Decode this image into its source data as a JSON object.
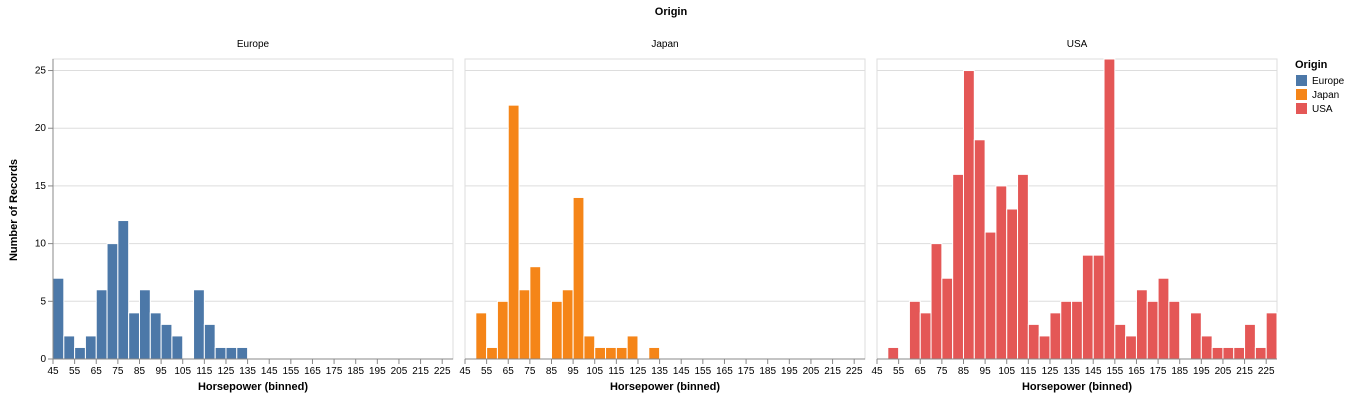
{
  "title": "Origin",
  "legend": {
    "title": "Origin",
    "position": "right",
    "items": [
      {
        "label": "Europe",
        "color": "#4c78a8"
      },
      {
        "label": "Japan",
        "color": "#f58518"
      },
      {
        "label": "USA",
        "color": "#e45756"
      }
    ]
  },
  "chart_data": {
    "type": "bar",
    "title": "Origin",
    "xlabel": "Horsepower (binned)",
    "ylabel": "Number of Records",
    "ylim": [
      0,
      26
    ],
    "yticks": [
      0,
      5,
      10,
      15,
      20,
      25
    ],
    "xlim": [
      45,
      230
    ],
    "bin_width": 5,
    "xticks": [
      45,
      55,
      65,
      75,
      85,
      95,
      105,
      115,
      125,
      135,
      145,
      155,
      165,
      175,
      185,
      195,
      205,
      215,
      225
    ],
    "grid": true,
    "facets": [
      {
        "name": "Europe",
        "color": "#4c78a8",
        "bins": [
          {
            "x0": 45,
            "count": 7
          },
          {
            "x0": 50,
            "count": 2
          },
          {
            "x0": 55,
            "count": 1
          },
          {
            "x0": 60,
            "count": 2
          },
          {
            "x0": 65,
            "count": 6
          },
          {
            "x0": 70,
            "count": 10
          },
          {
            "x0": 75,
            "count": 12
          },
          {
            "x0": 80,
            "count": 4
          },
          {
            "x0": 85,
            "count": 6
          },
          {
            "x0": 90,
            "count": 4
          },
          {
            "x0": 95,
            "count": 3
          },
          {
            "x0": 100,
            "count": 2
          },
          {
            "x0": 110,
            "count": 6
          },
          {
            "x0": 115,
            "count": 3
          },
          {
            "x0": 120,
            "count": 1
          },
          {
            "x0": 125,
            "count": 1
          },
          {
            "x0": 130,
            "count": 1
          }
        ]
      },
      {
        "name": "Japan",
        "color": "#f58518",
        "bins": [
          {
            "x0": 50,
            "count": 4
          },
          {
            "x0": 55,
            "count": 1
          },
          {
            "x0": 60,
            "count": 5
          },
          {
            "x0": 65,
            "count": 22
          },
          {
            "x0": 70,
            "count": 6
          },
          {
            "x0": 75,
            "count": 8
          },
          {
            "x0": 85,
            "count": 5
          },
          {
            "x0": 90,
            "count": 6
          },
          {
            "x0": 95,
            "count": 14
          },
          {
            "x0": 100,
            "count": 2
          },
          {
            "x0": 105,
            "count": 1
          },
          {
            "x0": 110,
            "count": 1
          },
          {
            "x0": 115,
            "count": 1
          },
          {
            "x0": 120,
            "count": 2
          },
          {
            "x0": 130,
            "count": 1
          }
        ]
      },
      {
        "name": "USA",
        "color": "#e45756",
        "bins": [
          {
            "x0": 50,
            "count": 1
          },
          {
            "x0": 60,
            "count": 5
          },
          {
            "x0": 65,
            "count": 4
          },
          {
            "x0": 70,
            "count": 10
          },
          {
            "x0": 75,
            "count": 7
          },
          {
            "x0": 80,
            "count": 16
          },
          {
            "x0": 85,
            "count": 25
          },
          {
            "x0": 90,
            "count": 19
          },
          {
            "x0": 95,
            "count": 11
          },
          {
            "x0": 100,
            "count": 15
          },
          {
            "x0": 105,
            "count": 13
          },
          {
            "x0": 110,
            "count": 16
          },
          {
            "x0": 115,
            "count": 3
          },
          {
            "x0": 120,
            "count": 2
          },
          {
            "x0": 125,
            "count": 4
          },
          {
            "x0": 130,
            "count": 5
          },
          {
            "x0": 135,
            "count": 5
          },
          {
            "x0": 140,
            "count": 9
          },
          {
            "x0": 145,
            "count": 9
          },
          {
            "x0": 150,
            "count": 26
          },
          {
            "x0": 155,
            "count": 3
          },
          {
            "x0": 160,
            "count": 2
          },
          {
            "x0": 165,
            "count": 6
          },
          {
            "x0": 170,
            "count": 5
          },
          {
            "x0": 175,
            "count": 7
          },
          {
            "x0": 180,
            "count": 5
          },
          {
            "x0": 190,
            "count": 4
          },
          {
            "x0": 195,
            "count": 2
          },
          {
            "x0": 200,
            "count": 1
          },
          {
            "x0": 205,
            "count": 1
          },
          {
            "x0": 210,
            "count": 1
          },
          {
            "x0": 215,
            "count": 3
          },
          {
            "x0": 220,
            "count": 1
          },
          {
            "x0": 225,
            "count": 4
          }
        ]
      }
    ]
  }
}
